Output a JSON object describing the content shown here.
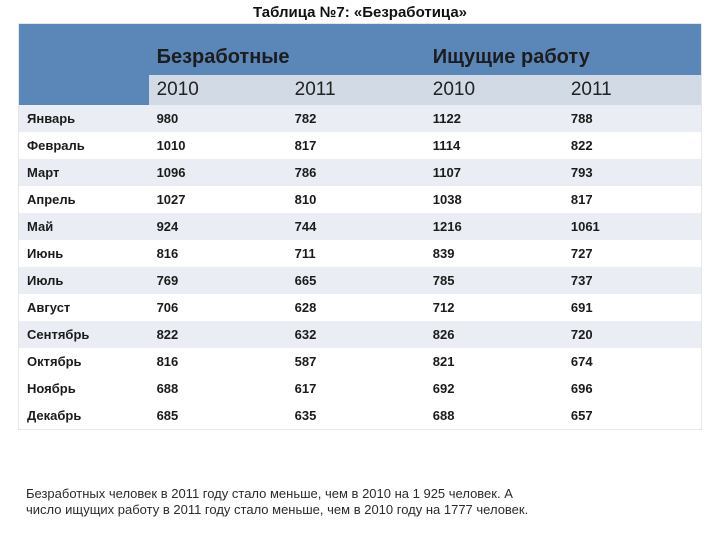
{
  "title": "Таблица №7: «Безработица»",
  "headers": {
    "group1": "Безработные",
    "group2": "Ищущие работу",
    "year1": "2010",
    "year2": "2011"
  },
  "rows": [
    {
      "month": "Январь",
      "u2010": "980",
      "u2011": "782",
      "s2010": "1122",
      "s2011": "788"
    },
    {
      "month": "Февраль",
      "u2010": "1010",
      "u2011": "817",
      "s2010": "1114",
      "s2011": "822"
    },
    {
      "month": "Март",
      "u2010": "1096",
      "u2011": "786",
      "s2010": "1107",
      "s2011": "793"
    },
    {
      "month": "Апрель",
      "u2010": "1027",
      "u2011": "810",
      "s2010": "1038",
      "s2011": "817"
    },
    {
      "month": "Май",
      "u2010": "924",
      "u2011": "744",
      "s2010": "1216",
      "s2011": "1061"
    },
    {
      "month": "Июнь",
      "u2010": "816",
      "u2011": "711",
      "s2010": "839",
      "s2011": "727"
    },
    {
      "month": "Июль",
      "u2010": "769",
      "u2011": "665",
      "s2010": "785",
      "s2011": "737"
    },
    {
      "month": "Август",
      "u2010": "706",
      "u2011": "628",
      "s2010": "712",
      "s2011": "691"
    },
    {
      "month": "Сентябрь",
      "u2010": "822",
      "u2011": "632",
      "s2010": "826",
      "s2011": "720"
    },
    {
      "month": "Октябрь",
      "u2010": "816",
      "u2011": "587",
      "s2010": "821",
      "s2011": "674"
    },
    {
      "month": "Ноябрь",
      "u2010": "688",
      "u2011": "617",
      "s2010": "692",
      "s2011": "696"
    },
    {
      "month": "Декабрь",
      "u2010": "685",
      "u2011": "635",
      "s2010": "688",
      "s2011": "657"
    }
  ],
  "footer": {
    "line1": "Безработных человек в 2011 году стало меньше, чем в 2010 на 1 925 человек. А",
    "line2": "число ищущих работу в 2011 году стало меньше, чем в 2010 году на 1777 человек."
  },
  "styling": {
    "type": "table",
    "header_bg": "#5a86b8",
    "subheader_bg": "#d2dae6",
    "row_alt_bg": "#eaeef4",
    "row_bg": "#ffffff",
    "text_color": "#1b1b1b",
    "title_fontsize": 15,
    "header_fontsize": 20,
    "subheader_fontsize": 19,
    "cell_fontsize": 13,
    "column_widths": [
      "19%",
      "20.25%",
      "20.25%",
      "20.25%",
      "20.25%"
    ]
  }
}
